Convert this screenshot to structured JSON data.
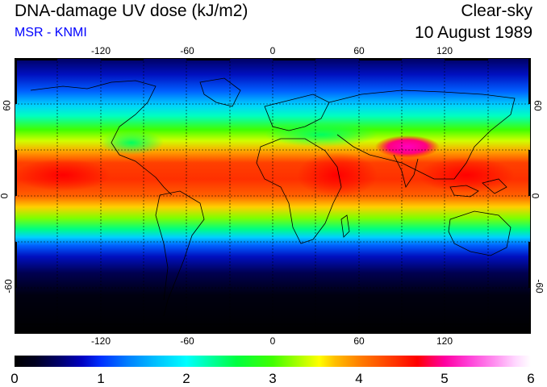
{
  "header": {
    "title": "DNA-damage UV dose (kJ/m2)",
    "subtitle": "MSR - KNMI",
    "condition": "Clear-sky",
    "date": "10 August 1989"
  },
  "map": {
    "lon_ticks": [
      "-120",
      "-60",
      "0",
      "60",
      "120"
    ],
    "lat_ticks": [
      "60",
      "0",
      "-60"
    ],
    "lat_ticks_right": [
      "60",
      "0",
      "-60"
    ]
  },
  "colorbar": {
    "labels": [
      "0",
      "1",
      "2",
      "3",
      "4",
      "5",
      "6"
    ],
    "min": 0,
    "max": 6
  },
  "colors": {
    "low": "#000000",
    "mid_blue": "#0030ff",
    "cyan": "#00ffff",
    "green": "#40ff00",
    "yellow": "#ffff00",
    "orange": "#ff8000",
    "red": "#ff0000",
    "magenta": "#ff00a0",
    "high": "#ffffff"
  }
}
